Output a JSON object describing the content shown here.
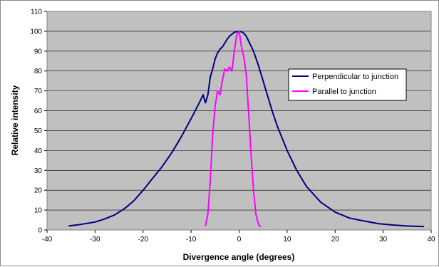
{
  "chart_data": {
    "type": "line",
    "title": "",
    "xlabel": "Divergence angle (degrees)",
    "ylabel": "Relative intensity",
    "xlim": [
      -40,
      40
    ],
    "ylim": [
      0,
      110
    ],
    "xticks": [
      -40,
      -30,
      -20,
      -10,
      0,
      10,
      20,
      30,
      40
    ],
    "yticks": [
      0,
      10,
      20,
      30,
      40,
      50,
      60,
      70,
      80,
      90,
      100,
      110
    ],
    "grid": true,
    "plot_background": "#c0c0c0",
    "legend_position": "right",
    "series": [
      {
        "name": "Perpendicular to junction",
        "color": "#000080",
        "x": [
          -35.5,
          -33,
          -30,
          -28,
          -26,
          -24,
          -22,
          -20,
          -18,
          -16,
          -14,
          -12,
          -10,
          -8.5,
          -7.5,
          -7,
          -6.5,
          -6,
          -5.5,
          -5,
          -4.5,
          -4,
          -3.5,
          -3,
          -2.5,
          -2,
          -1.5,
          -1,
          -0.5,
          0,
          0.5,
          1,
          1.5,
          2,
          3,
          4,
          5,
          6,
          7,
          8,
          10,
          12,
          14,
          15.5,
          17,
          20,
          23,
          26,
          29,
          32,
          35,
          38.5
        ],
        "y": [
          2,
          2.8,
          4,
          5.5,
          7.5,
          10.5,
          14.5,
          20,
          26,
          32,
          39,
          47,
          56,
          63,
          68,
          64,
          68,
          77,
          81,
          86,
          89,
          91,
          92,
          94,
          96,
          97.5,
          98.5,
          99.5,
          99.8,
          100,
          99.7,
          99,
          97.5,
          95,
          90,
          83,
          75,
          67,
          59,
          52,
          40,
          30,
          22,
          18,
          14,
          9,
          6,
          4.5,
          3.2,
          2.5,
          2,
          1.7
        ]
      },
      {
        "name": "Parallel to junction",
        "color": "#ff00ff",
        "x": [
          -7,
          -6.5,
          -6,
          -5.5,
          -5,
          -4.5,
          -4,
          -3.5,
          -3,
          -2.5,
          -2,
          -1.5,
          -1,
          -0.5,
          0,
          0.5,
          1,
          1.5,
          2,
          2.5,
          3,
          3.5,
          4,
          4.5
        ],
        "y": [
          2,
          8,
          25,
          48,
          62,
          70,
          68,
          75,
          81,
          80,
          82,
          80,
          90,
          98,
          100,
          92,
          87,
          78,
          58,
          38,
          20,
          8,
          3,
          1.5
        ]
      }
    ]
  }
}
